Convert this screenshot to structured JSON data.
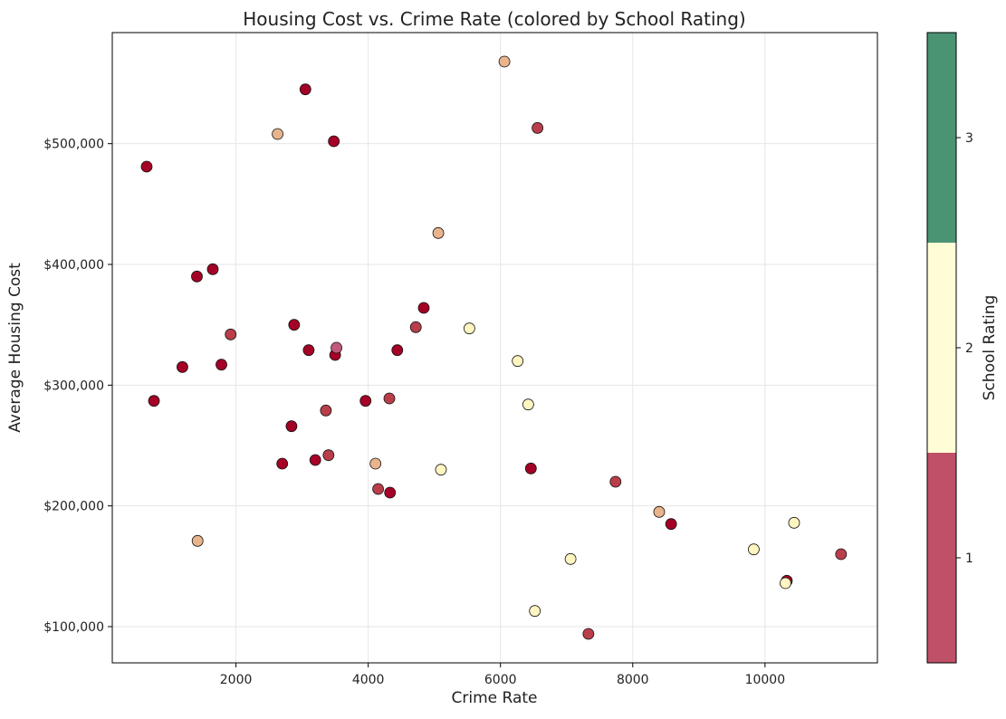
{
  "chart_data": {
    "type": "scatter",
    "title": "Housing Cost vs. Crime Rate (colored by School Rating)",
    "xlabel": "Crime Rate",
    "ylabel": "Average Housing Cost",
    "xlim": [
      130,
      11700
    ],
    "ylim": [
      70000,
      592000
    ],
    "xticks": [
      {
        "value": 2000,
        "label": "2000"
      },
      {
        "value": 4000,
        "label": "4000"
      },
      {
        "value": 6000,
        "label": "6000"
      },
      {
        "value": 8000,
        "label": "8000"
      },
      {
        "value": 10000,
        "label": "10000"
      }
    ],
    "yticks": [
      {
        "value": 100000,
        "label": "$100,000"
      },
      {
        "value": 200000,
        "label": "$200,000"
      },
      {
        "value": 300000,
        "label": "$300,000"
      },
      {
        "value": 400000,
        "label": "$400,000"
      },
      {
        "value": 500000,
        "label": "$500,000"
      }
    ],
    "grid": true,
    "colorbar": {
      "label": "School Rating",
      "range": [
        0.5,
        3.5
      ],
      "ticks": [
        {
          "value": 1,
          "label": "1"
        },
        {
          "value": 2,
          "label": "2"
        },
        {
          "value": 3,
          "label": "3"
        }
      ],
      "bands": [
        {
          "from": 0.5,
          "to": 1.5,
          "color": "#bf5068"
        },
        {
          "from": 1.5,
          "to": 2.5,
          "color": "#fffdd5"
        },
        {
          "from": 2.5,
          "to": 3.5,
          "color": "#4a9474"
        }
      ]
    },
    "points": [
      {
        "x": 650,
        "y": 481000,
        "color": "#a50026"
      },
      {
        "x": 760,
        "y": 287000,
        "color": "#a50026"
      },
      {
        "x": 1190,
        "y": 315000,
        "color": "#a50026"
      },
      {
        "x": 1410,
        "y": 390000,
        "color": "#a50026"
      },
      {
        "x": 1420,
        "y": 171000,
        "color": "#e9b48c"
      },
      {
        "x": 1650,
        "y": 396000,
        "color": "#a50026"
      },
      {
        "x": 1780,
        "y": 317000,
        "color": "#a50026"
      },
      {
        "x": 1920,
        "y": 342000,
        "color": "#b93e4a"
      },
      {
        "x": 2630,
        "y": 508000,
        "color": "#e9b48c"
      },
      {
        "x": 2700,
        "y": 235000,
        "color": "#a50026"
      },
      {
        "x": 2840,
        "y": 266000,
        "color": "#a50026"
      },
      {
        "x": 2880,
        "y": 350000,
        "color": "#a50026"
      },
      {
        "x": 3050,
        "y": 545000,
        "color": "#a50026"
      },
      {
        "x": 3100,
        "y": 329000,
        "color": "#a50026"
      },
      {
        "x": 3200,
        "y": 238000,
        "color": "#a50026"
      },
      {
        "x": 3360,
        "y": 279000,
        "color": "#b93e4a"
      },
      {
        "x": 3400,
        "y": 242000,
        "color": "#b93e4a"
      },
      {
        "x": 3480,
        "y": 502000,
        "color": "#a50026"
      },
      {
        "x": 3500,
        "y": 325000,
        "color": "#a50026"
      },
      {
        "x": 3520,
        "y": 331000,
        "color": "#c05a7a"
      },
      {
        "x": 3960,
        "y": 287000,
        "color": "#a50026"
      },
      {
        "x": 4110,
        "y": 235000,
        "color": "#e9b48c"
      },
      {
        "x": 4150,
        "y": 214000,
        "color": "#b93e4a"
      },
      {
        "x": 4320,
        "y": 289000,
        "color": "#b93e4a"
      },
      {
        "x": 4330,
        "y": 211000,
        "color": "#a50026"
      },
      {
        "x": 4440,
        "y": 329000,
        "color": "#a50026"
      },
      {
        "x": 4720,
        "y": 348000,
        "color": "#b93e4a"
      },
      {
        "x": 4840,
        "y": 364000,
        "color": "#a50026"
      },
      {
        "x": 5060,
        "y": 426000,
        "color": "#e9b48c"
      },
      {
        "x": 5100,
        "y": 230000,
        "color": "#fff5c0"
      },
      {
        "x": 5530,
        "y": 347000,
        "color": "#fff5c0"
      },
      {
        "x": 6060,
        "y": 568000,
        "color": "#e9b48c"
      },
      {
        "x": 6260,
        "y": 320000,
        "color": "#fff5c0"
      },
      {
        "x": 6420,
        "y": 284000,
        "color": "#fff5c0"
      },
      {
        "x": 6460,
        "y": 231000,
        "color": "#a50026"
      },
      {
        "x": 6520,
        "y": 113000,
        "color": "#fff5c0"
      },
      {
        "x": 6560,
        "y": 513000,
        "color": "#b93e4a"
      },
      {
        "x": 7060,
        "y": 156000,
        "color": "#fff5c0"
      },
      {
        "x": 7330,
        "y": 94000,
        "color": "#b93e4a"
      },
      {
        "x": 7740,
        "y": 220000,
        "color": "#b93e4a"
      },
      {
        "x": 8400,
        "y": 195000,
        "color": "#e9b48c"
      },
      {
        "x": 8580,
        "y": 185000,
        "color": "#a50026"
      },
      {
        "x": 9830,
        "y": 164000,
        "color": "#fff5c0"
      },
      {
        "x": 10330,
        "y": 138000,
        "color": "#a50026"
      },
      {
        "x": 10310,
        "y": 136000,
        "color": "#fff5c0"
      },
      {
        "x": 10440,
        "y": 186000,
        "color": "#fff5c0"
      },
      {
        "x": 11150,
        "y": 160000,
        "color": "#b93e4a"
      }
    ]
  }
}
